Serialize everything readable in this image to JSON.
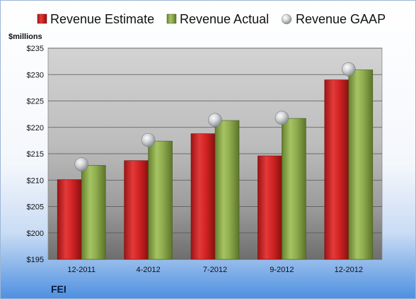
{
  "chart_data": {
    "type": "bar",
    "ylabel": "$millions",
    "ylim": [
      195,
      235
    ],
    "y_ticks": [
      195,
      200,
      205,
      210,
      215,
      220,
      225,
      230,
      235
    ],
    "y_tick_labels": [
      "$195",
      "$200",
      "$205",
      "$210",
      "$215",
      "$220",
      "$225",
      "$230",
      "$235"
    ],
    "categories": [
      "12-2011",
      "4-2012",
      "7-2012",
      "9-2012",
      "12-2012"
    ],
    "series": [
      {
        "name": "Revenue Estimate",
        "kind": "bar",
        "color": "#cc1f1f",
        "values": [
          210.1,
          213.7,
          218.8,
          214.6,
          229.0
        ]
      },
      {
        "name": "Revenue Actual",
        "kind": "bar",
        "color": "#8aa84a",
        "values": [
          212.8,
          217.4,
          221.3,
          221.7,
          230.9
        ]
      },
      {
        "name": "Revenue GAAP",
        "kind": "marker",
        "color": "#b9bcc2",
        "values": [
          213.0,
          217.6,
          221.4,
          221.8,
          231.0
        ]
      }
    ],
    "legend_position": "top",
    "grid": true,
    "company": "FEI"
  }
}
